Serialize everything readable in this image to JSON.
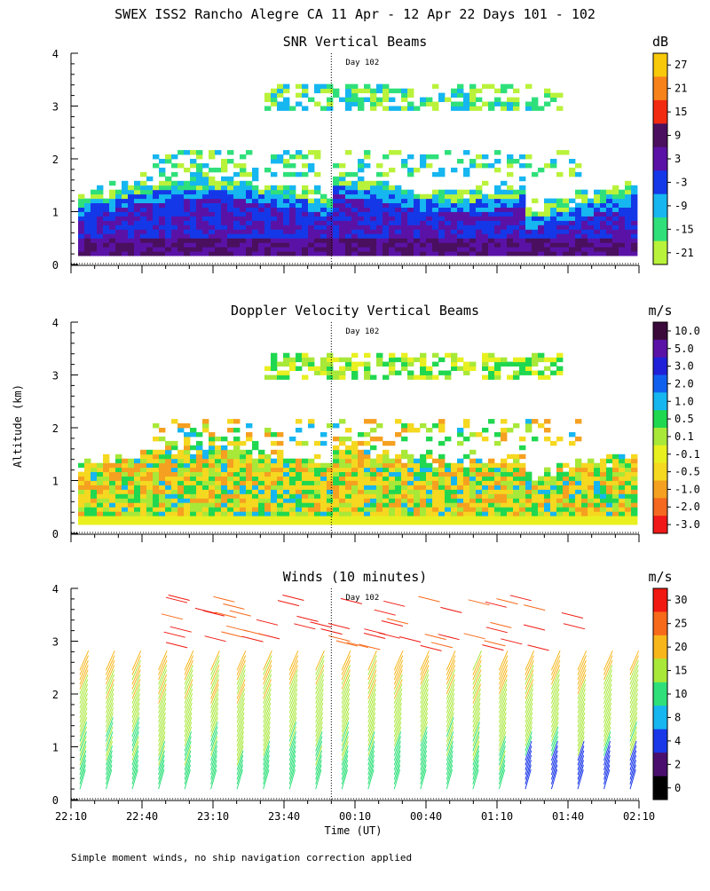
{
  "page_title": "SWEX ISS2 Rancho Alegre CA  11 Apr - 12 Apr 22 Days 101 - 102",
  "ylabel": "Altitude (km)",
  "xlabel": "Time (UT)",
  "footnote": "Simple moment winds, no ship navigation correction applied",
  "x_ticks": [
    "22:10",
    "22:40",
    "23:10",
    "23:40",
    "00:10",
    "00:40",
    "01:10",
    "01:40",
    "02:10"
  ],
  "day_marker": {
    "label": "Day 102",
    "time": "00:00"
  },
  "chart_data": [
    {
      "type": "heatmap",
      "title": "SNR Vertical Beams",
      "unit": "dB",
      "ylim": [
        0,
        4
      ],
      "yticks": [
        "0",
        "1",
        "2",
        "3",
        "4"
      ],
      "colorbar": {
        "labels": [
          "27",
          "21",
          "15",
          "9",
          "3",
          "-3",
          "-9",
          "-15",
          "-21"
        ],
        "colors": [
          "#f7c90a",
          "#f7821a",
          "#f22a10",
          "#4a0f5e",
          "#5a12a6",
          "#1438e8",
          "#16b6f0",
          "#2fe07a",
          "#b9f23a"
        ]
      }
    },
    {
      "type": "heatmap",
      "title": "Doppler Velocity Vertical Beams",
      "unit": "m/s",
      "ylim": [
        0,
        4
      ],
      "yticks": [
        "0",
        "1",
        "2",
        "3",
        "4"
      ],
      "colorbar": {
        "labels": [
          "10.0",
          "5.0",
          "3.0",
          "2.0",
          "1.0",
          "0.5",
          "0.1",
          "-0.1",
          "-0.5",
          "-1.0",
          "-2.0",
          "-3.0"
        ],
        "colors": [
          "#3a0a3a",
          "#5a12a6",
          "#2020d8",
          "#1060f0",
          "#16b6f0",
          "#20d850",
          "#a8e838",
          "#e8f020",
          "#f5d820",
          "#f5a020",
          "#f56820",
          "#f01818"
        ]
      }
    },
    {
      "type": "scatter",
      "title": "Winds (10 minutes)",
      "unit": "m/s",
      "ylim": [
        0,
        4
      ],
      "yticks": [
        "0",
        "1",
        "2",
        "3",
        "4"
      ],
      "colorbar": {
        "labels": [
          "30",
          "25",
          "20",
          "15",
          "10",
          "8",
          "4",
          "2",
          "0"
        ],
        "colors": [
          "#f01810",
          "#f76a1a",
          "#f7b61a",
          "#a8e838",
          "#2fe07a",
          "#16b6f0",
          "#1a38e8",
          "#4a0f6e",
          "#000000"
        ]
      }
    }
  ]
}
